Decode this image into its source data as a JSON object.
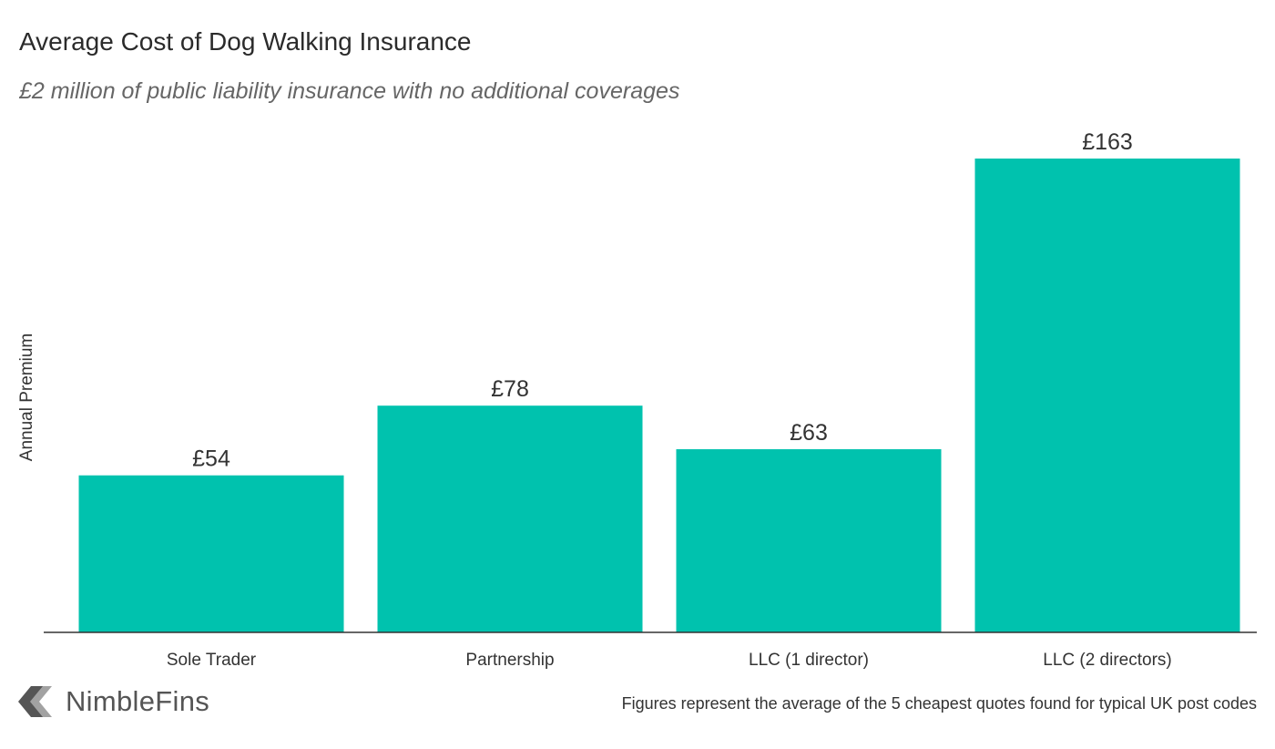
{
  "chart_data": {
    "type": "bar",
    "title": "Average Cost of Dog Walking Insurance",
    "subtitle": "£2 million of public liability insurance with no additional coverages",
    "xlabel": "",
    "ylabel": "Annual Premium",
    "categories": [
      "Sole Trader",
      "Partnership",
      "LLC (1 director)",
      "LLC (2 directors)"
    ],
    "values": [
      54,
      78,
      63,
      163
    ],
    "value_labels": [
      "£54",
      "£78",
      "£63",
      "£163"
    ],
    "ylim": [
      0,
      170
    ],
    "grid": false,
    "bar_color": "#00c2ae"
  },
  "footer": {
    "note": "Figures represent the average of the 5 cheapest quotes found for typical UK post codes",
    "logo_text": "NimbleFins",
    "logo_icon": "chevron-left-icon"
  }
}
